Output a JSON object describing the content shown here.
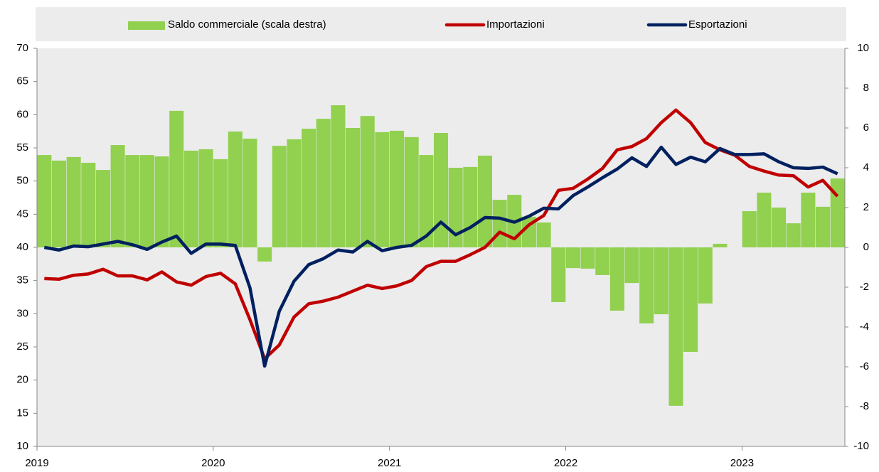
{
  "chart_data": {
    "type": "combo",
    "categories": [
      "2019",
      null,
      null,
      null,
      null,
      null,
      null,
      null,
      null,
      null,
      null,
      null,
      "2020",
      null,
      null,
      null,
      null,
      null,
      null,
      null,
      null,
      null,
      null,
      null,
      "2021",
      null,
      null,
      null,
      null,
      null,
      null,
      null,
      null,
      null,
      null,
      null,
      "2022",
      null,
      null,
      null,
      null,
      null,
      null,
      null,
      null,
      null,
      null,
      null,
      "2023",
      null,
      null,
      null,
      null,
      null,
      null
    ],
    "ylim": [
      10,
      70
    ],
    "yticks": [
      10,
      15,
      20,
      25,
      30,
      35,
      40,
      45,
      50,
      55,
      60,
      65,
      70
    ],
    "y2lim": [
      -10,
      10
    ],
    "y2ticks": [
      -10,
      -8,
      -6,
      -4,
      -2,
      0,
      2,
      4,
      6,
      8,
      10
    ],
    "legend": "top",
    "series": [
      {
        "name": "Saldo commerciale (scala destra)",
        "type": "bar",
        "axis": "y2",
        "color": "#92d050",
        "values": [
          4.64,
          4.36,
          4.54,
          4.25,
          3.89,
          5.14,
          4.64,
          4.64,
          4.57,
          6.86,
          4.86,
          4.93,
          4.43,
          5.82,
          5.46,
          -0.71,
          5.1,
          5.43,
          5.96,
          6.46,
          7.14,
          6.0,
          6.6,
          5.79,
          5.86,
          5.54,
          4.64,
          5.75,
          4.0,
          4.04,
          4.61,
          2.39,
          2.64,
          1.54,
          1.25,
          -2.75,
          -1.04,
          -1.07,
          -1.39,
          -3.18,
          -1.79,
          -3.82,
          -3.36,
          -7.96,
          -5.25,
          -2.82,
          0.18,
          0,
          1.82,
          2.75,
          2.0,
          1.21,
          2.75,
          2.04,
          3.46
        ]
      },
      {
        "name": "Importazioni",
        "type": "line",
        "color": "#c00000",
        "values": [
          35.3,
          35.2,
          35.8,
          36.0,
          36.7,
          35.7,
          35.7,
          35.1,
          36.3,
          34.8,
          34.3,
          35.6,
          36.1,
          34.5,
          29.1,
          23.2,
          25.3,
          29.5,
          31.5,
          31.9,
          32.5,
          33.4,
          34.3,
          33.8,
          34.2,
          35.0,
          37.1,
          37.9,
          37.9,
          38.9,
          40.0,
          42.3,
          41.3,
          43.4,
          44.8,
          48.6,
          48.9,
          50.3,
          51.9,
          54.7,
          55.2,
          56.4,
          58.8,
          60.7,
          58.8,
          55.8,
          54.7,
          53.9,
          52.2,
          51.5,
          50.9,
          50.8,
          49.1,
          50.1,
          47.7
        ]
      },
      {
        "name": "Esportazioni",
        "type": "line",
        "color": "#002060",
        "values": [
          40.0,
          39.6,
          40.2,
          40.1,
          40.5,
          40.9,
          40.4,
          39.7,
          40.8,
          41.7,
          39.1,
          40.5,
          40.5,
          40.3,
          33.9,
          22.1,
          30.4,
          34.9,
          37.4,
          38.3,
          39.6,
          39.3,
          40.9,
          39.5,
          40.0,
          40.3,
          41.7,
          43.8,
          41.9,
          43.0,
          44.5,
          44.4,
          43.8,
          44.7,
          45.9,
          45.8,
          47.8,
          49.1,
          50.5,
          51.8,
          53.5,
          52.2,
          55.1,
          52.5,
          53.6,
          52.9,
          54.9,
          54.0,
          54.0,
          54.1,
          52.9,
          52.0,
          51.9,
          52.1,
          51.1
        ]
      }
    ]
  }
}
